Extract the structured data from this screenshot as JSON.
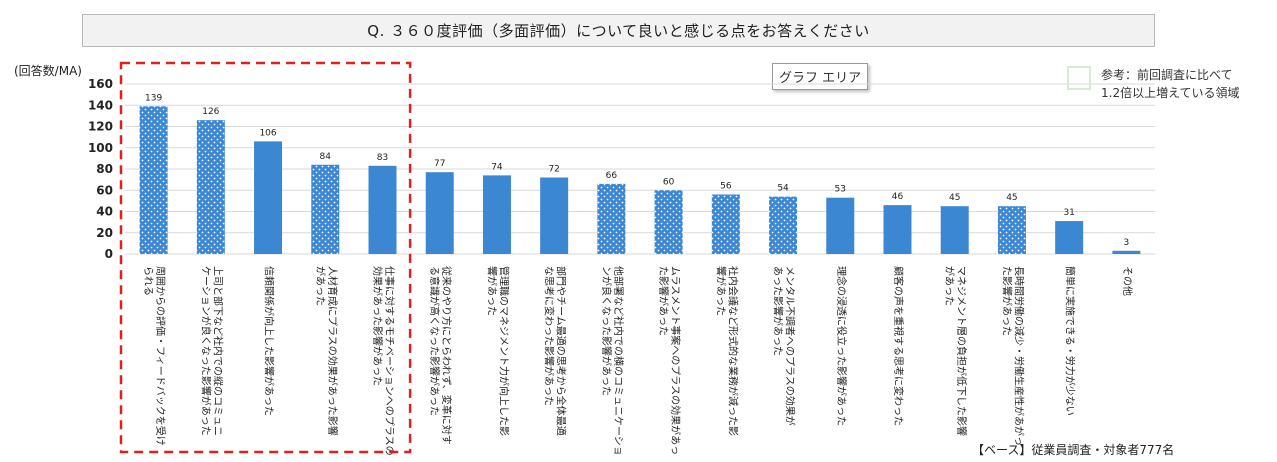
{
  "title": "Q. ３６０度評価（多面評価）について良いと感じる点をお答えください",
  "area_badge": "グラフ エリア",
  "legend": {
    "text_line1": "参考：前回調査に比べて",
    "text_line2": "1.2倍以上増えている領域",
    "swatch_color": "#d9ead3"
  },
  "source": "【ベース】従業員調査・対象者777名",
  "colors": {
    "bar": "#3b87d2",
    "highlight_box": "#e0201b",
    "grid": "#d9d9d9"
  },
  "chart_data": {
    "type": "bar",
    "ylabel": "(回答数/MA)",
    "ylim": [
      0,
      160
    ],
    "yticks": [
      0,
      20,
      40,
      60,
      80,
      100,
      120,
      140,
      160
    ],
    "grid": true,
    "categories": [
      [
        "周囲からの評価・フィードバックを受け",
        "られる"
      ],
      [
        "上司と部下など社内での縦のコミュニ",
        "ケーションが良くなった影響があった"
      ],
      [
        "信頼関係が向上した影響があった"
      ],
      [
        "人材育成にプラスの効果があった影響",
        "があった"
      ],
      [
        "仕事に対するモチベーションへのプラスの",
        "効果があった影響があった"
      ],
      [
        "従来のやり方にとらわれず、変革に対す",
        "る意識が高くなった影響があった"
      ],
      [
        "管理職のマネジメント力が向上した影",
        "響があった"
      ],
      [
        "部門やチーム最適の思考から全体最適",
        "な思考に変わった影響があった"
      ],
      [
        "他部署など社内での横のコミュニケーショ",
        "ンが良くなった影響があった"
      ],
      [
        "ムラスメント事案へのプラスの効果があっ",
        "た影響があった"
      ],
      [
        "社内会議など形式的な業務が減った影",
        "響があった"
      ],
      [
        "メンタル不調者へのプラスの効果が",
        "あった影響があった"
      ],
      [
        "理念の浸透に役立った影響があった"
      ],
      [
        "顧客の声を重視する思考に変わった"
      ],
      [
        "マネジメント層の負担が低下した影響",
        "があった"
      ],
      [
        "長時間労働の減少・労働生産性があがっ",
        "た影響があった"
      ],
      [
        "簡単に実施できる・労力が少ない"
      ],
      [
        "その他"
      ]
    ],
    "values": [
      139,
      126,
      106,
      84,
      83,
      77,
      74,
      72,
      66,
      60,
      56,
      54,
      53,
      46,
      45,
      45,
      31,
      3
    ],
    "dotted": [
      true,
      true,
      false,
      true,
      false,
      false,
      false,
      false,
      true,
      true,
      true,
      true,
      false,
      false,
      false,
      true,
      false,
      false
    ],
    "highlight_range": [
      0,
      4
    ]
  }
}
